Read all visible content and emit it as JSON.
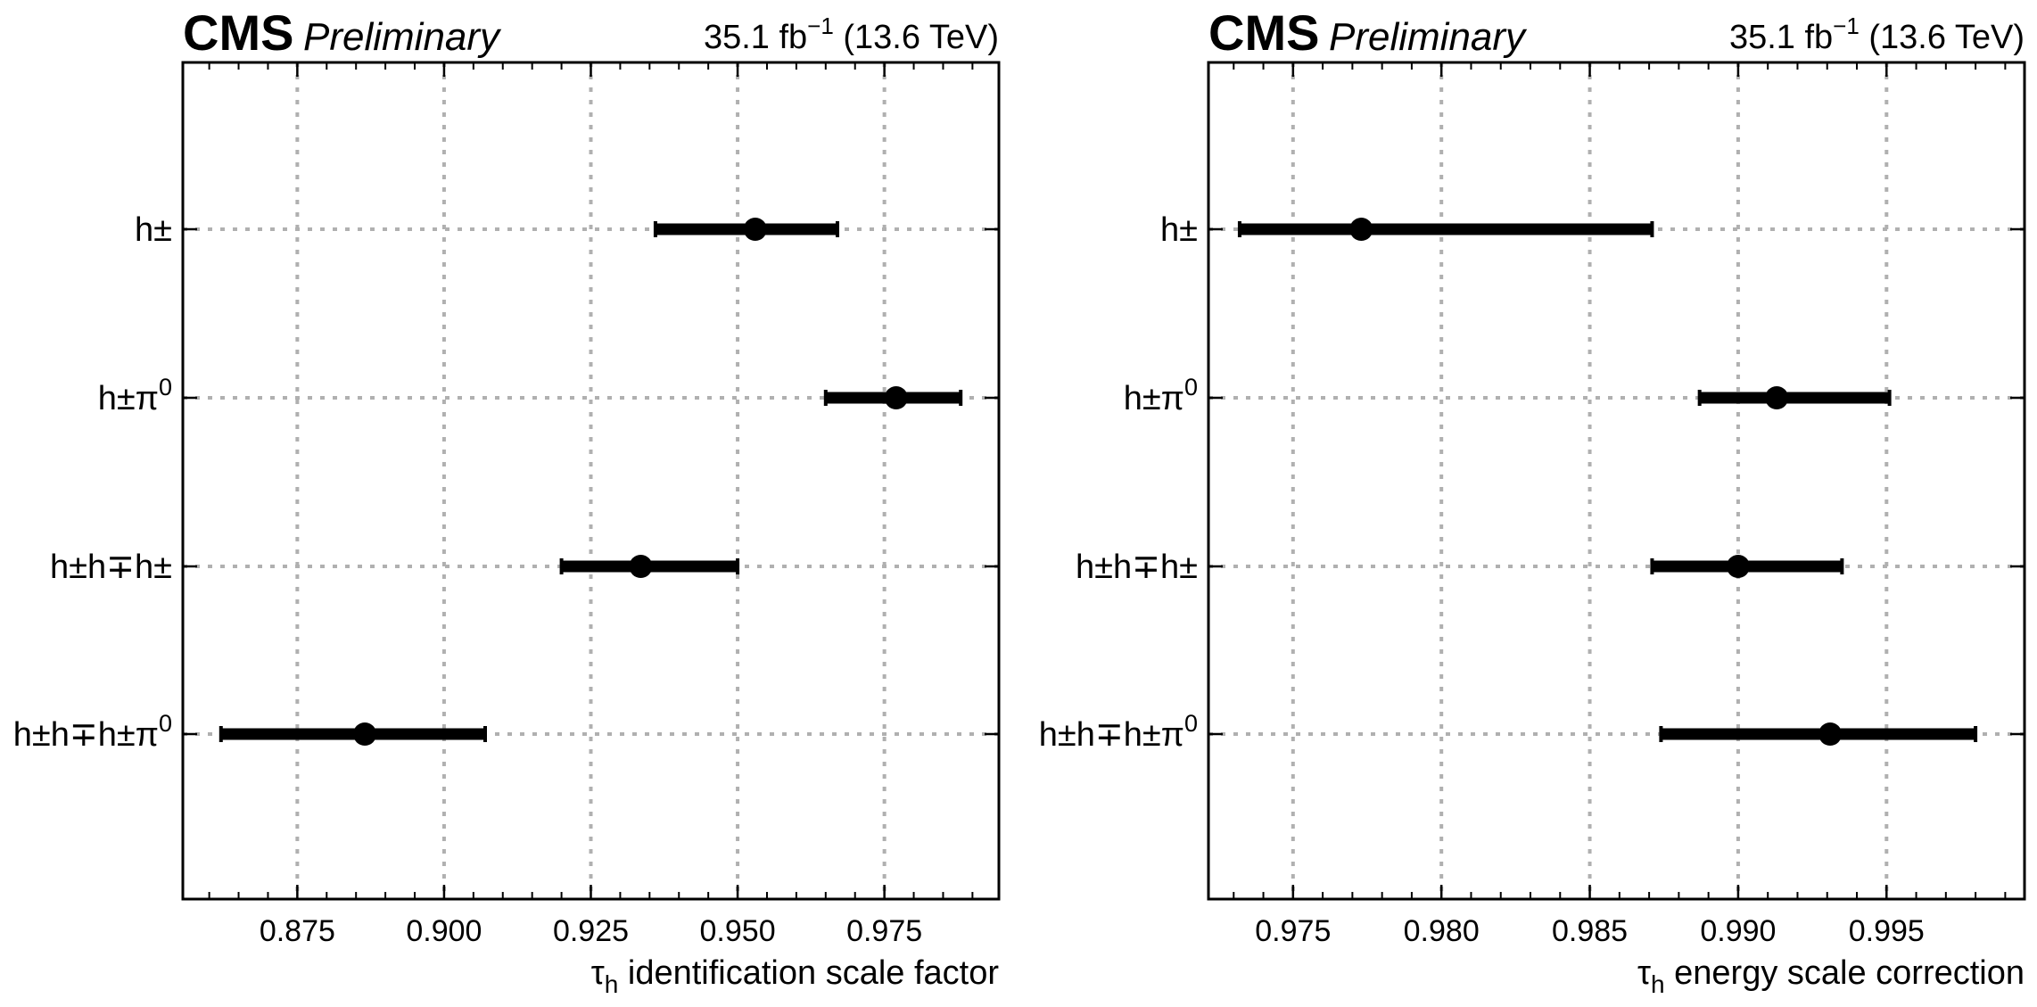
{
  "header": {
    "experiment": "CMS",
    "status": "Preliminary",
    "lumi_prefix": "35.1 fb",
    "lumi_exp": "−1",
    "lumi_suffix": " (13.6 TeV)"
  },
  "categories": [
    {
      "base": "h±",
      "sup": ""
    },
    {
      "base": "h±π",
      "sup": "0"
    },
    {
      "base": "h±h∓h±",
      "sup": ""
    },
    {
      "base": "h±h∓h±π",
      "sup": "0"
    }
  ],
  "chart_data": [
    {
      "type": "errorbar",
      "xlabel_symbol": "τ",
      "xlabel_sub": "h",
      "xlabel_text": " identification scale factor",
      "xlim": [
        0.8555,
        0.9945
      ],
      "xticks": [
        0.875,
        0.9,
        0.925,
        0.95,
        0.975
      ],
      "xtick_labels": [
        "0.875",
        "0.900",
        "0.925",
        "0.950",
        "0.975"
      ],
      "grid": true,
      "points": [
        {
          "category": "h±",
          "value": 0.953,
          "low": 0.936,
          "high": 0.967
        },
        {
          "category": "h±π0",
          "value": 0.977,
          "low": 0.965,
          "high": 0.988
        },
        {
          "category": "h±h∓h±",
          "value": 0.9335,
          "low": 0.92,
          "high": 0.95
        },
        {
          "category": "h±h∓h±π0",
          "value": 0.8865,
          "low": 0.862,
          "high": 0.907
        }
      ]
    },
    {
      "type": "errorbar",
      "xlabel_symbol": "τ",
      "xlabel_sub": "h",
      "xlabel_text": " energy scale correction",
      "xlim": [
        0.97215,
        0.99965
      ],
      "xticks": [
        0.975,
        0.98,
        0.985,
        0.99,
        0.995
      ],
      "xtick_labels": [
        "0.975",
        "0.980",
        "0.985",
        "0.990",
        "0.995"
      ],
      "grid": true,
      "points": [
        {
          "category": "h±",
          "value": 0.9773,
          "low": 0.9732,
          "high": 0.9871
        },
        {
          "category": "h±π0",
          "value": 0.9913,
          "low": 0.9887,
          "high": 0.9951
        },
        {
          "category": "h±h∓h±",
          "value": 0.99,
          "low": 0.9871,
          "high": 0.9935
        },
        {
          "category": "h±h∓h±π0",
          "value": 0.9931,
          "low": 0.9874,
          "high": 0.998
        }
      ]
    }
  ]
}
